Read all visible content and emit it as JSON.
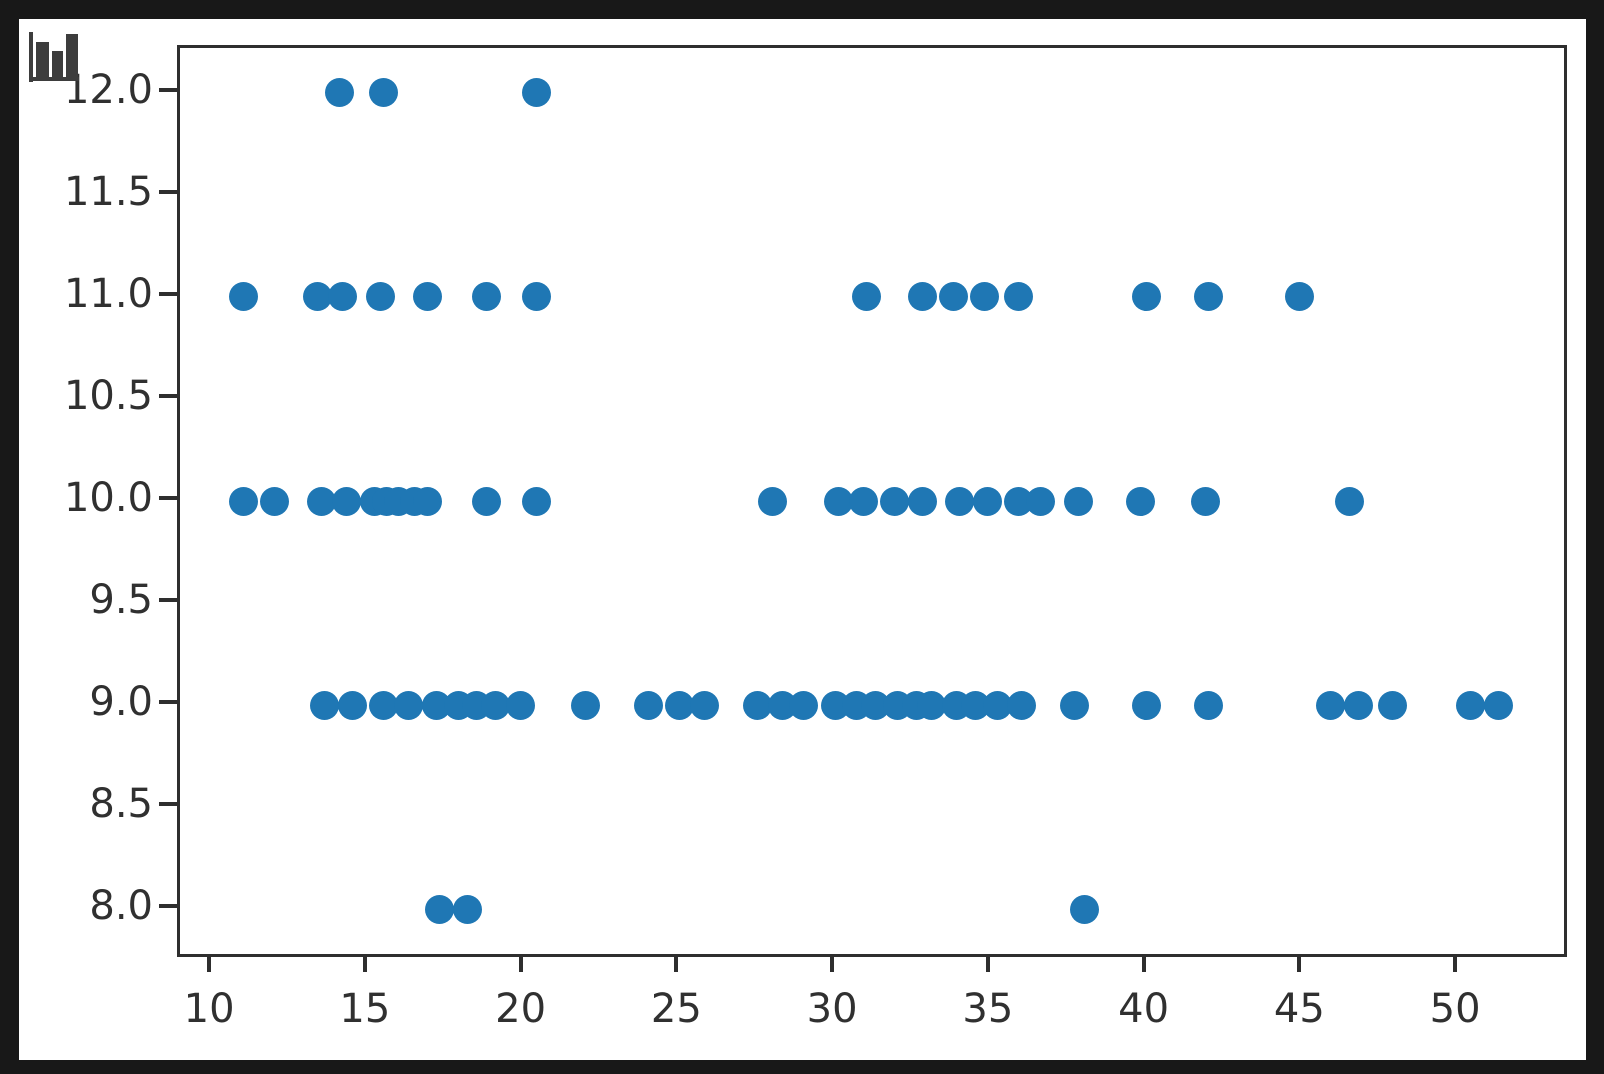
{
  "colors": {
    "page_background": "#181818",
    "figure_background": "#ffffff",
    "axis_line": "#2e2e2e",
    "tick_text": "#303030",
    "marker": "#1f77b4",
    "icon": "#3d3d3d"
  },
  "icon": {
    "name": "bar-chart-icon"
  },
  "chart_data": {
    "type": "scatter",
    "title": "",
    "xlabel": "",
    "ylabel": "",
    "grid": false,
    "legend": null,
    "xlim": [
      8.97,
      53.4
    ],
    "ylim": [
      7.78,
      12.22
    ],
    "x_ticks": [
      {
        "value": 10,
        "label": "10"
      },
      {
        "value": 15,
        "label": "15"
      },
      {
        "value": 20,
        "label": "20"
      },
      {
        "value": 25,
        "label": "25"
      },
      {
        "value": 30,
        "label": "30"
      },
      {
        "value": 35,
        "label": "35"
      },
      {
        "value": 40,
        "label": "40"
      },
      {
        "value": 45,
        "label": "45"
      },
      {
        "value": 50,
        "label": "50"
      }
    ],
    "y_ticks": [
      {
        "value": 8.0,
        "label": "8.0"
      },
      {
        "value": 8.5,
        "label": "8.5"
      },
      {
        "value": 9.0,
        "label": "9.0"
      },
      {
        "value": 9.5,
        "label": "9.5"
      },
      {
        "value": 10.0,
        "label": "10.0"
      },
      {
        "value": 10.5,
        "label": "10.5"
      },
      {
        "value": 11.0,
        "label": "11.0"
      },
      {
        "value": 11.5,
        "label": "11.5"
      },
      {
        "value": 12.0,
        "label": "12.0"
      }
    ],
    "marker_color": "#1f77b4",
    "points": [
      [
        14.1,
        12
      ],
      [
        15.5,
        12
      ],
      [
        20.4,
        12
      ],
      [
        11,
        11
      ],
      [
        13.4,
        11
      ],
      [
        14.2,
        11
      ],
      [
        15.4,
        11
      ],
      [
        16.9,
        11
      ],
      [
        18.8,
        11
      ],
      [
        20.4,
        11
      ],
      [
        31,
        11
      ],
      [
        32.8,
        11
      ],
      [
        33.8,
        11
      ],
      [
        34.8,
        11
      ],
      [
        35.9,
        11
      ],
      [
        40,
        11
      ],
      [
        42,
        11
      ],
      [
        44.9,
        11
      ],
      [
        11,
        10
      ],
      [
        12,
        10
      ],
      [
        13.5,
        10
      ],
      [
        14.3,
        10
      ],
      [
        15.2,
        10
      ],
      [
        15.6,
        10
      ],
      [
        16,
        10
      ],
      [
        16.5,
        10
      ],
      [
        16.9,
        10
      ],
      [
        18.8,
        10
      ],
      [
        20.4,
        10
      ],
      [
        28,
        10
      ],
      [
        30.1,
        10
      ],
      [
        30.9,
        10
      ],
      [
        31.9,
        10
      ],
      [
        32.8,
        10
      ],
      [
        34,
        10
      ],
      [
        34.9,
        10
      ],
      [
        35.9,
        10
      ],
      [
        36.6,
        10
      ],
      [
        37.8,
        10
      ],
      [
        39.8,
        10
      ],
      [
        41.9,
        10
      ],
      [
        46.5,
        10
      ],
      [
        13.6,
        9
      ],
      [
        14.5,
        9
      ],
      [
        15.5,
        9
      ],
      [
        16.3,
        9
      ],
      [
        17.2,
        9
      ],
      [
        17.9,
        9
      ],
      [
        18.5,
        9
      ],
      [
        19.1,
        9
      ],
      [
        19.9,
        9
      ],
      [
        22,
        9
      ],
      [
        24,
        9
      ],
      [
        25,
        9
      ],
      [
        25.8,
        9
      ],
      [
        27.5,
        9
      ],
      [
        28.3,
        9
      ],
      [
        29,
        9
      ],
      [
        30,
        9
      ],
      [
        30.7,
        9
      ],
      [
        31.3,
        9
      ],
      [
        32,
        9
      ],
      [
        32.6,
        9
      ],
      [
        33.1,
        9
      ],
      [
        33.9,
        9
      ],
      [
        34.5,
        9
      ],
      [
        35.2,
        9
      ],
      [
        36,
        9
      ],
      [
        37.7,
        9
      ],
      [
        40,
        9
      ],
      [
        42,
        9
      ],
      [
        45.9,
        9
      ],
      [
        46.8,
        9
      ],
      [
        47.9,
        9
      ],
      [
        50.4,
        9
      ],
      [
        51.3,
        9
      ],
      [
        17.3,
        8
      ],
      [
        18.2,
        8
      ],
      [
        38,
        8
      ]
    ]
  }
}
